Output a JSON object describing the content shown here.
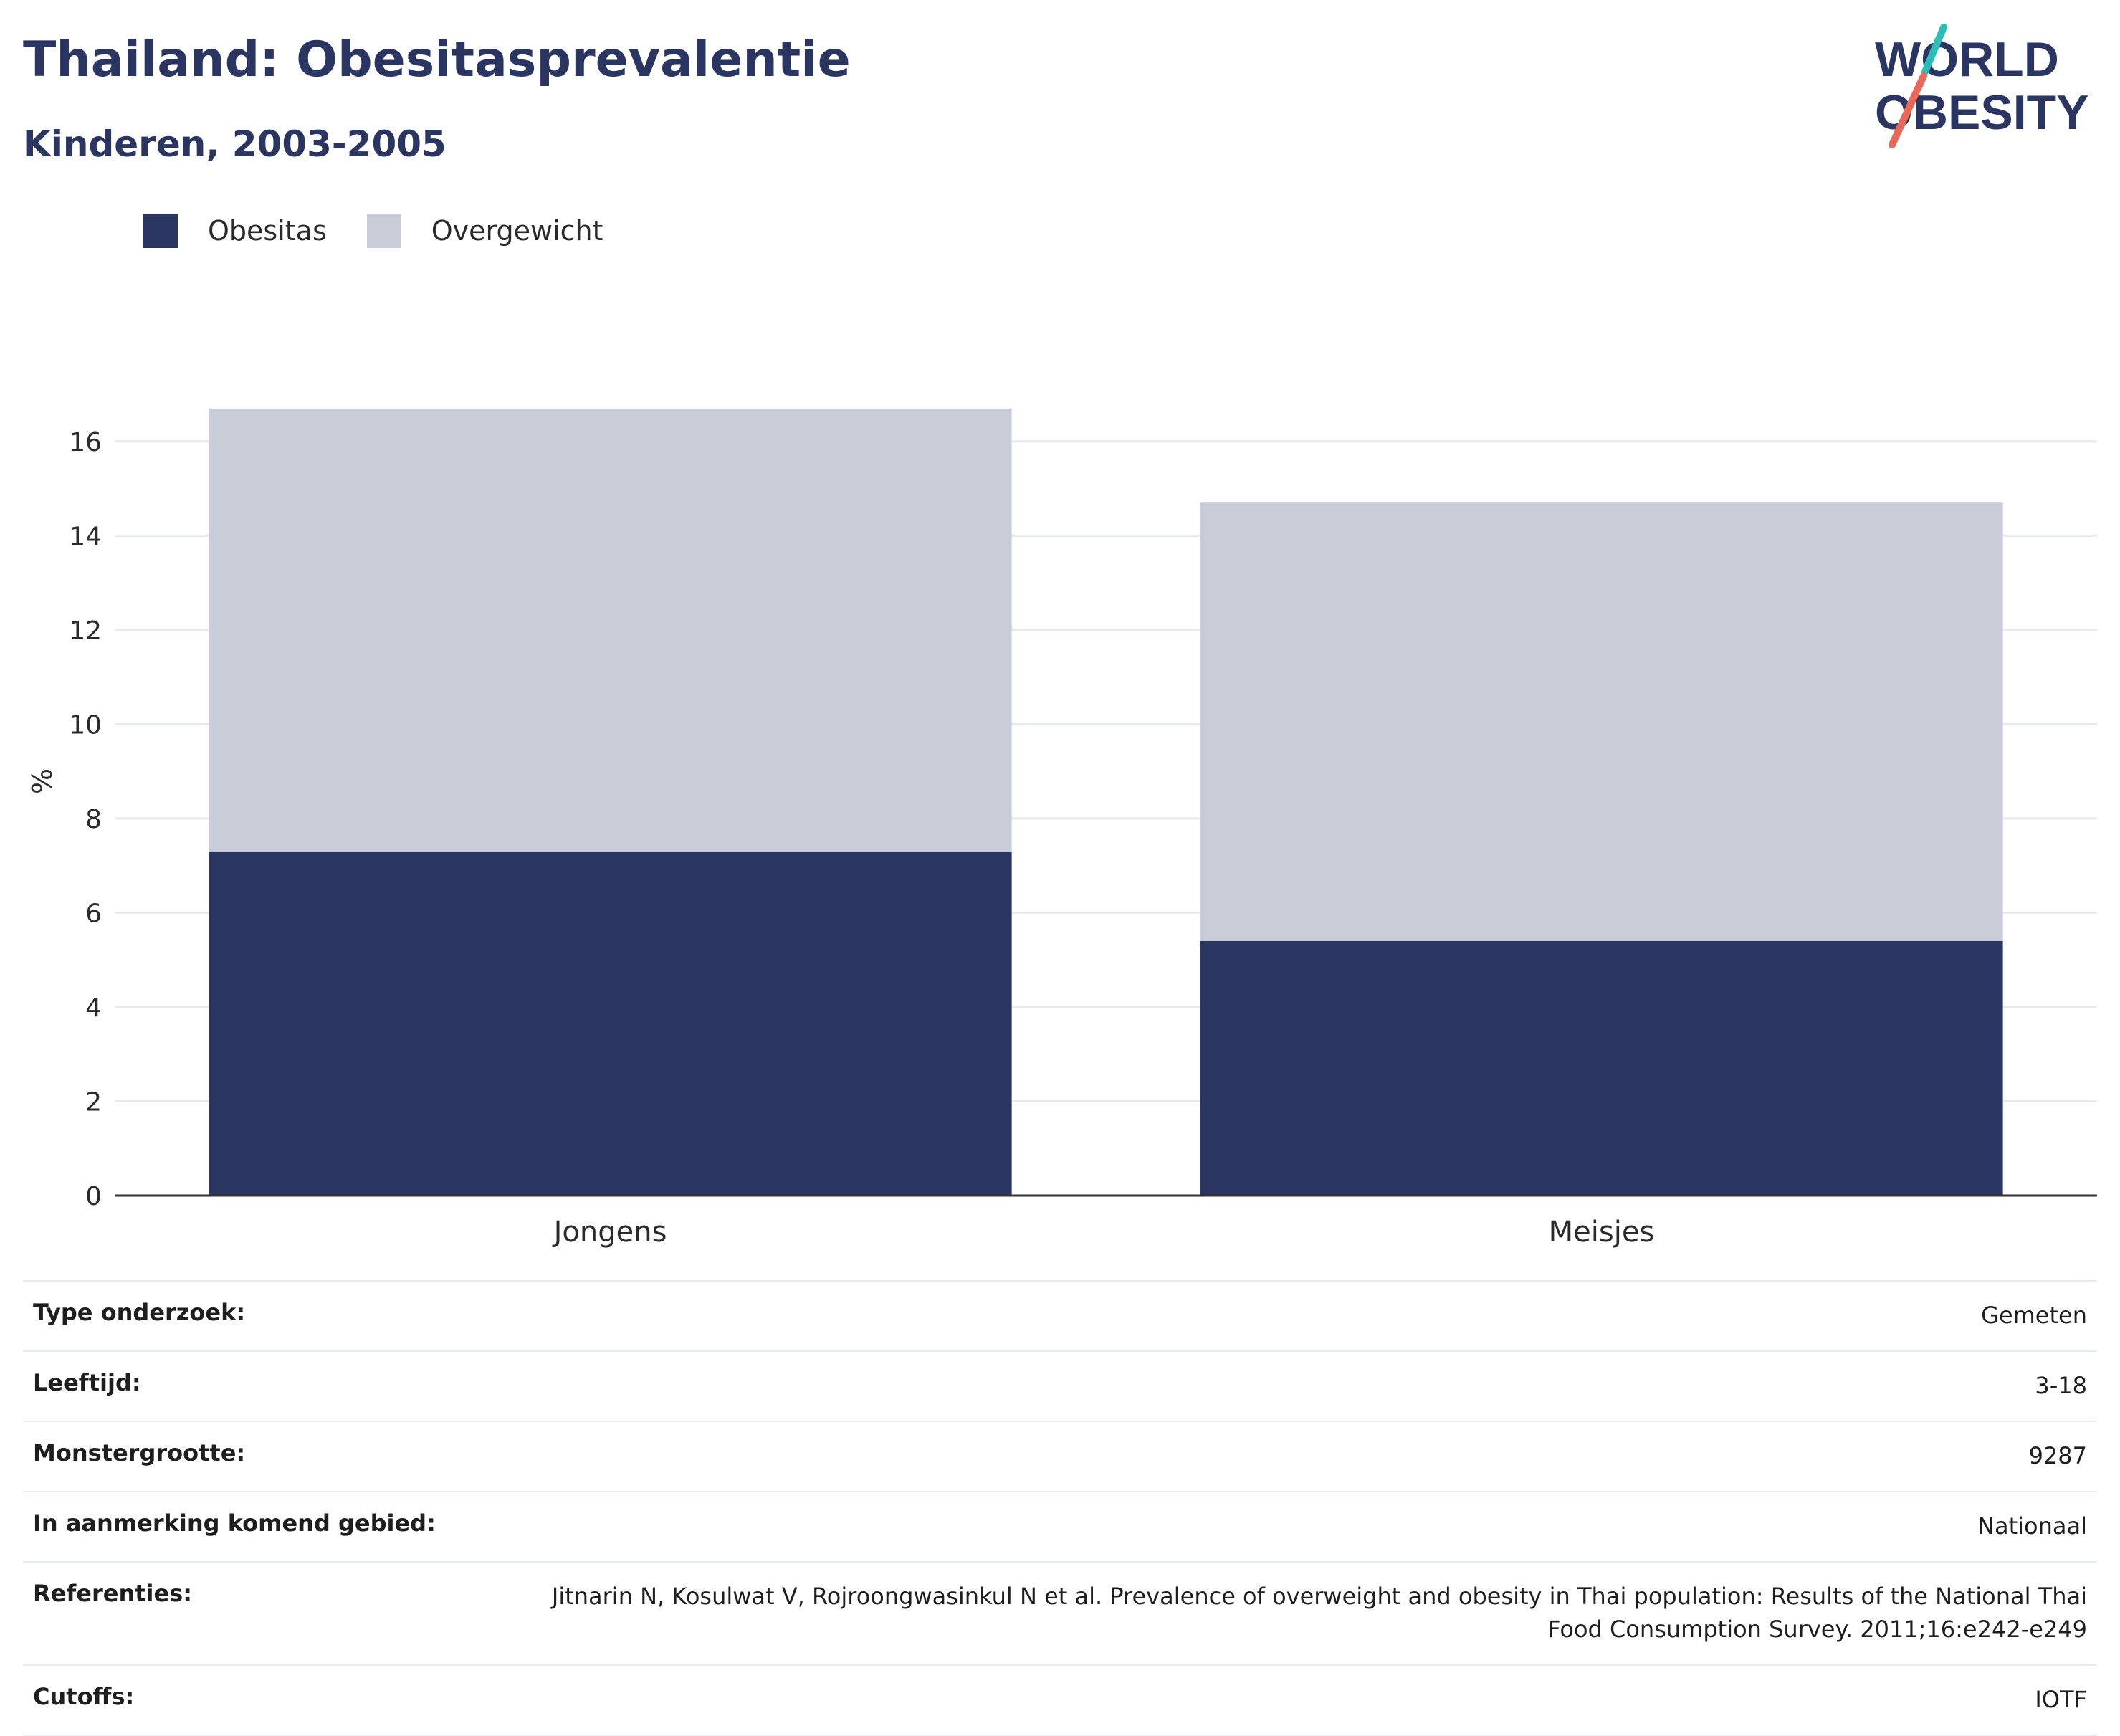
{
  "header": {
    "title": "Thailand: Obesitasprevalentie",
    "subtitle": "Kinderen, 2003-2005"
  },
  "logo": {
    "line1": "WORLD",
    "line2": "OBESITY",
    "colors": {
      "text": "#2a3562",
      "slash_top": "#2dbdb6",
      "slash_bottom": "#e8685a"
    }
  },
  "legend": [
    {
      "label": "Obesitas",
      "color": "#2a3562"
    },
    {
      "label": "Overgewicht",
      "color": "#c9cbd6"
    }
  ],
  "chart_data": {
    "type": "bar",
    "stacked": true,
    "categories": [
      "Jongens",
      "Meisjes"
    ],
    "series": [
      {
        "name": "Obesitas",
        "values": [
          7.3,
          5.4
        ],
        "color": "#2a3562"
      },
      {
        "name": "Overgewicht",
        "values": [
          9.4,
          9.3
        ],
        "color": "#c9cbd6"
      }
    ],
    "ylabel": "%",
    "ylim": [
      0,
      17
    ],
    "yticks": [
      0,
      2,
      4,
      6,
      8,
      10,
      12,
      14,
      16
    ],
    "grid": true,
    "legend_position": "top-left"
  },
  "metadata": [
    {
      "label": "Type onderzoek:",
      "value": "Gemeten"
    },
    {
      "label": "Leeftijd:",
      "value": "3-18"
    },
    {
      "label": "Monstergrootte:",
      "value": "9287"
    },
    {
      "label": "In aanmerking komend gebied:",
      "value": "Nationaal"
    },
    {
      "label": "Referenties:",
      "value": "Jitnarin N, Kosulwat V, Rojroongwasinkul N et al. Prevalence of overweight and obesity in Thai population: Results of the National Thai Food Consumption Survey. 2011;16:e242-e249"
    },
    {
      "label": "Cutoffs:",
      "value": "IOTF"
    }
  ]
}
